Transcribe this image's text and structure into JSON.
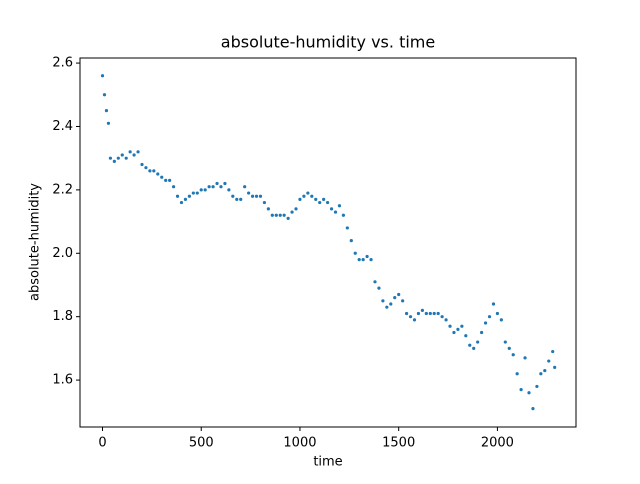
{
  "chart_data": {
    "type": "scatter",
    "title": "absolute-humidity vs. time",
    "xlabel": "time",
    "ylabel": "absolute-humidity",
    "color": "#1f77b4",
    "x": [
      0,
      10,
      20,
      30,
      40,
      60,
      80,
      100,
      120,
      140,
      160,
      180,
      200,
      220,
      240,
      260,
      280,
      300,
      320,
      340,
      360,
      380,
      400,
      420,
      440,
      460,
      480,
      500,
      520,
      540,
      560,
      580,
      600,
      620,
      640,
      660,
      680,
      700,
      720,
      740,
      760,
      780,
      800,
      820,
      840,
      860,
      880,
      900,
      920,
      940,
      960,
      980,
      1000,
      1020,
      1040,
      1060,
      1080,
      1100,
      1120,
      1140,
      1160,
      1180,
      1200,
      1220,
      1240,
      1260,
      1280,
      1300,
      1320,
      1340,
      1360,
      1380,
      1400,
      1420,
      1440,
      1460,
      1480,
      1500,
      1520,
      1540,
      1560,
      1580,
      1600,
      1620,
      1640,
      1660,
      1680,
      1700,
      1720,
      1740,
      1760,
      1780,
      1800,
      1820,
      1840,
      1860,
      1880,
      1900,
      1920,
      1940,
      1960,
      1980,
      2000,
      2020,
      2040,
      2060,
      2080,
      2100,
      2120,
      2140,
      2160,
      2180,
      2200,
      2220,
      2240,
      2260,
      2280,
      2290
    ],
    "values": [
      2.56,
      2.5,
      2.45,
      2.41,
      2.3,
      2.29,
      2.3,
      2.31,
      2.3,
      2.32,
      2.31,
      2.32,
      2.28,
      2.27,
      2.26,
      2.26,
      2.25,
      2.24,
      2.23,
      2.23,
      2.21,
      2.18,
      2.16,
      2.17,
      2.18,
      2.19,
      2.19,
      2.2,
      2.2,
      2.21,
      2.21,
      2.22,
      2.21,
      2.22,
      2.2,
      2.18,
      2.17,
      2.17,
      2.21,
      2.19,
      2.18,
      2.18,
      2.18,
      2.16,
      2.14,
      2.12,
      2.12,
      2.12,
      2.12,
      2.11,
      2.13,
      2.14,
      2.17,
      2.18,
      2.19,
      2.18,
      2.17,
      2.16,
      2.17,
      2.16,
      2.14,
      2.13,
      2.15,
      2.12,
      2.08,
      2.04,
      2.0,
      1.98,
      1.98,
      1.99,
      1.98,
      1.91,
      1.89,
      1.85,
      1.83,
      1.84,
      1.86,
      1.87,
      1.85,
      1.81,
      1.8,
      1.79,
      1.81,
      1.82,
      1.81,
      1.81,
      1.81,
      1.81,
      1.8,
      1.79,
      1.77,
      1.75,
      1.76,
      1.77,
      1.74,
      1.71,
      1.7,
      1.72,
      1.75,
      1.78,
      1.8,
      1.84,
      1.81,
      1.79,
      1.72,
      1.7,
      1.68,
      1.62,
      1.57,
      1.67,
      1.56,
      1.51,
      1.58,
      1.62,
      1.63,
      1.66,
      1.69,
      1.64
    ],
    "xlim": [
      -114,
      2398
    ],
    "ylim": [
      1.452,
      2.616
    ],
    "xticks": [
      0,
      500,
      1000,
      1500,
      2000
    ],
    "yticks": [
      1.6,
      1.8,
      {
        "value": 2,
        "label": "2.0"
      },
      2.2,
      2.4,
      2.6
    ]
  }
}
